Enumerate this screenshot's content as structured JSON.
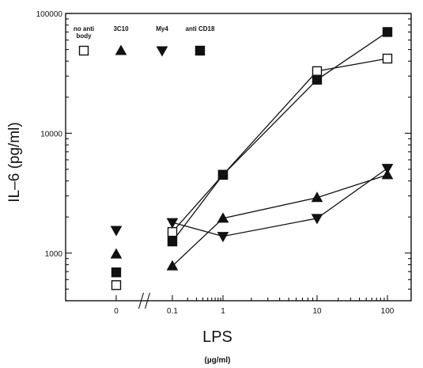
{
  "chart_data": {
    "type": "scatter",
    "title": "",
    "ylabel": "IL–6 (pg/ml)",
    "xlabel": "LPS",
    "xunits": "(µg/ml)",
    "yscale": "log",
    "ylim": [
      400,
      100000
    ],
    "y_ticks": [
      1000,
      10000,
      100000
    ],
    "y_tick_labels": [
      "1000",
      "10000",
      "100000"
    ],
    "x_categories": [
      "0",
      "0.1",
      "1",
      "10",
      "100"
    ],
    "axis_break_between": [
      "0",
      "0.1"
    ],
    "legend_placement": "top-left",
    "series": [
      {
        "name": "no anti body",
        "marker": "square-open",
        "legend_lines": [
          "no anti",
          "body"
        ],
        "points": [
          {
            "x": "0",
            "y": 540
          },
          {
            "x": "0.1",
            "y": 1500
          },
          {
            "x": "1",
            "y": 4500
          },
          {
            "x": "10",
            "y": 33000
          },
          {
            "x": "100",
            "y": 42000
          }
        ]
      },
      {
        "name": "3C10",
        "marker": "triangle-up",
        "legend_lines": [
          "3C10"
        ],
        "points": [
          {
            "x": "0",
            "y": 980
          },
          {
            "x": "0.1",
            "y": 780
          },
          {
            "x": "1",
            "y": 1950
          },
          {
            "x": "10",
            "y": 2900
          },
          {
            "x": "100",
            "y": 4500
          }
        ]
      },
      {
        "name": "My4",
        "marker": "triangle-down",
        "legend_lines": [
          "My4"
        ],
        "points": [
          {
            "x": "0",
            "y": 1550
          },
          {
            "x": "0.1",
            "y": 1800
          },
          {
            "x": "1",
            "y": 1380
          },
          {
            "x": "10",
            "y": 1950
          },
          {
            "x": "100",
            "y": 5100
          }
        ]
      },
      {
        "name": "anti CD18",
        "marker": "square-filled",
        "legend_lines": [
          "anti CD18"
        ],
        "points": [
          {
            "x": "0",
            "y": 690
          },
          {
            "x": "0.1",
            "y": 1250
          },
          {
            "x": "1",
            "y": 4500
          },
          {
            "x": "10",
            "y": 28000
          },
          {
            "x": "100",
            "y": 70000
          }
        ]
      }
    ]
  }
}
